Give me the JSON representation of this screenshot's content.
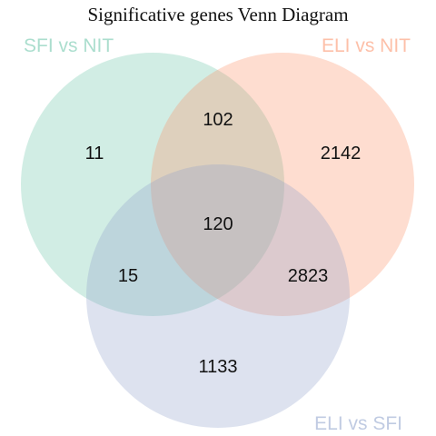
{
  "title": "Significative genes Venn Diagram",
  "sets": [
    {
      "id": "a",
      "label": "SFI vs NIT",
      "color": "#66c2a5"
    },
    {
      "id": "b",
      "label": "ELI vs NIT",
      "color": "#fc8d62"
    },
    {
      "id": "c",
      "label": "ELI vs SFI",
      "color": "#8da0cb"
    }
  ],
  "regions": {
    "sfi_only": "11",
    "sfi_eli_nit": "102",
    "eli_nit_only": "2142",
    "all_three": "120",
    "sfi_and_eli_sfi": "15",
    "eli_nit_and_eli_sfi": "2823",
    "eli_sfi_only": "1133"
  }
}
